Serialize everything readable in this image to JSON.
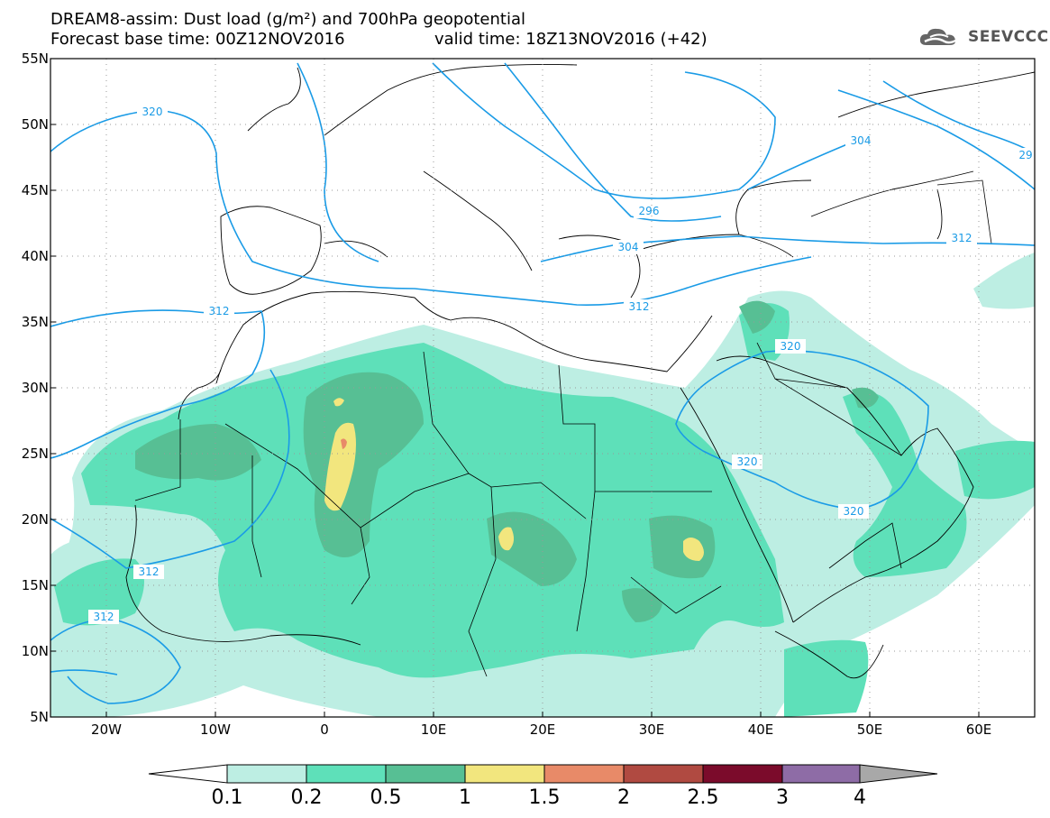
{
  "header": {
    "title": "DREAM8-assim: Dust load (g/m²) and 700hPa geopotential",
    "forecast_base": "Forecast base time: 00Z12NOV2016",
    "valid_time": "valid time: 18Z13NOV2016 (+42)"
  },
  "logo": {
    "text": "SEEVCCC",
    "icon": "cloud-icon"
  },
  "map": {
    "lon_range": [
      -25,
      65
    ],
    "lat_range": [
      5,
      55
    ],
    "lat_labels": [
      "55N",
      "50N",
      "45N",
      "40N",
      "35N",
      "30N",
      "25N",
      "20N",
      "15N",
      "10N",
      "5N"
    ],
    "lon_labels": [
      "20W",
      "10W",
      "0",
      "10E",
      "20E",
      "30E",
      "40E",
      "50E",
      "60E"
    ],
    "contour_labels": [
      "320",
      "304",
      "29",
      "296",
      "312",
      "304",
      "312",
      "312",
      "320",
      "320",
      "320",
      "312",
      "312"
    ],
    "colors": {
      "contour": "#1a9be6",
      "border": "#000000",
      "bin_0_1": "#bdeee3",
      "bin_0_2": "#5ee0b9",
      "bin_0_5": "#57bf94",
      "bin_1": "#f2e67e",
      "bin_1_5": "#e88a68",
      "bin_2": "#b04a41",
      "bin_2_5": "#7b0b2b",
      "bin_3": "#8e6ca6",
      "above_4": "#a8a8a8"
    }
  },
  "colorbar": {
    "labels": [
      "0.1",
      "0.2",
      "0.5",
      "1",
      "1.5",
      "2",
      "2.5",
      "3",
      "4"
    ],
    "colors": [
      "#bdeee3",
      "#5ee0b9",
      "#57bf94",
      "#f2e67e",
      "#e88a68",
      "#b04a41",
      "#7b0b2b",
      "#8e6ca6"
    ],
    "over_color": "#a8a8a8",
    "under_color": "#ffffff"
  }
}
